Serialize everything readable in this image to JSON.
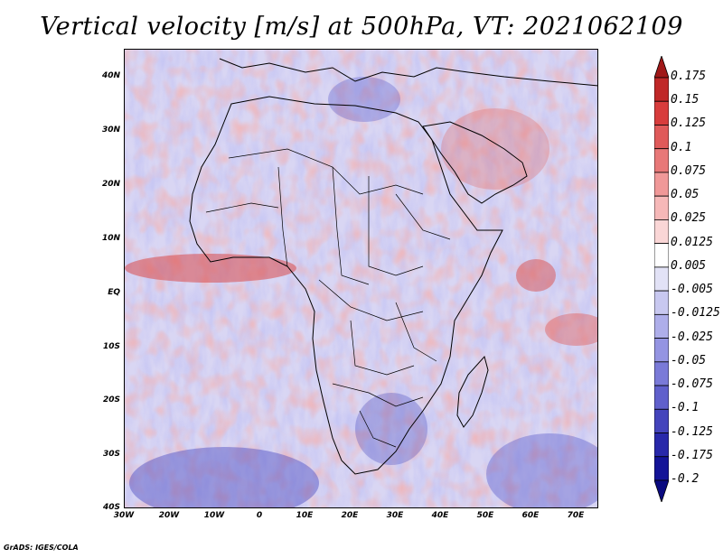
{
  "title": "Vertical velocity [m/s] at 500hPa, VT: 2021062109",
  "footer": "GrADS: IGES/COLA",
  "map": {
    "lat_labels": [
      "40N",
      "30N",
      "20N",
      "10N",
      "EQ",
      "10S",
      "20S",
      "30S",
      "40S"
    ],
    "lon_labels": [
      "30W",
      "20W",
      "10W",
      "0",
      "10E",
      "20E",
      "30E",
      "40E",
      "50E",
      "60E",
      "70E"
    ],
    "lon_range": [
      -30,
      75
    ],
    "lat_range": [
      -40,
      45
    ]
  },
  "colorbar": {
    "labels": [
      "0.175",
      "0.15",
      "0.125",
      "0.1",
      "0.075",
      "0.05",
      "0.025",
      "0.0125",
      "0.005",
      "-0.005",
      "-0.0125",
      "-0.025",
      "-0.05",
      "-0.075",
      "-0.1",
      "-0.125",
      "-0.175",
      "-0.2"
    ],
    "colors": [
      "#a01818",
      "#c02828",
      "#d83c3c",
      "#e05a5a",
      "#e87878",
      "#f09898",
      "#f6b8b8",
      "#fad6d6",
      "#ffffff",
      "#e2e2f6",
      "#c8c8f0",
      "#aeaeea",
      "#9494e2",
      "#7a7ad8",
      "#6060cc",
      "#4444bc",
      "#2828aa",
      "#141498",
      "#0a0a80"
    ]
  }
}
